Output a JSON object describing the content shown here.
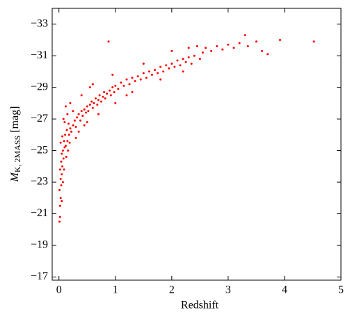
{
  "chart_data": {
    "type": "scatter",
    "x_label": "Redshift",
    "y_label": {
      "symbol": "M",
      "subscript": "K, 2MASS",
      "unit": "[mag]"
    },
    "color": "#ff0000",
    "xlim": [
      -0.12,
      5
    ],
    "xticks": [
      0,
      1,
      2,
      3,
      4,
      5
    ],
    "ylim": [
      -16.8,
      -34
    ],
    "yticks": [
      {
        "value": -33,
        "label": "−33"
      },
      {
        "value": -31,
        "label": "−31"
      },
      {
        "value": -29,
        "label": "−29"
      },
      {
        "value": -27,
        "label": "−27"
      },
      {
        "value": -25,
        "label": "−25"
      },
      {
        "value": -23,
        "label": "−23"
      },
      {
        "value": -21,
        "label": "−21"
      },
      {
        "value": -19,
        "label": "−19"
      },
      {
        "value": -17,
        "label": "−17"
      }
    ],
    "x": [
      0.01,
      0.02,
      0.02,
      0.03,
      0.01,
      0.04,
      0.03,
      0.05,
      0.02,
      0.06,
      0.04,
      0.08,
      0.05,
      0.07,
      0.1,
      0.03,
      0.09,
      0.12,
      0.06,
      0.15,
      0.11,
      0.14,
      0.18,
      0.2,
      0.1,
      0.17,
      0.22,
      0.25,
      0.28,
      0.3,
      0.15,
      0.32,
      0.35,
      0.38,
      0.4,
      0.42,
      0.45,
      0.48,
      0.5,
      0.52,
      0.55,
      0.58,
      0.6,
      0.62,
      0.65,
      0.68,
      0.7,
      0.72,
      0.75,
      0.78,
      0.8,
      0.82,
      0.85,
      0.88,
      0.9,
      0.92,
      0.95,
      0.98,
      1.0,
      1.05,
      1.1,
      1.15,
      1.2,
      1.25,
      1.3,
      1.35,
      1.4,
      1.45,
      1.5,
      1.55,
      1.6,
      1.65,
      1.7,
      1.75,
      1.8,
      1.85,
      1.9,
      1.95,
      2.0,
      2.05,
      2.1,
      2.15,
      2.2,
      2.25,
      2.3,
      2.35,
      2.4,
      2.5,
      2.55,
      2.6,
      2.7,
      2.8,
      2.9,
      3.0,
      3.1,
      3.2,
      3.3,
      3.35,
      3.5,
      3.6,
      3.7,
      3.92,
      4.52,
      0.3,
      0.25,
      0.4,
      0.5,
      0.6,
      0.7,
      0.2,
      0.12,
      0.08,
      1.0,
      1.2,
      1.5,
      1.3,
      0.95,
      2.0,
      2.2,
      1.8,
      2.45,
      2.3,
      0.55,
      0.45,
      0.35,
      0.07,
      0.05,
      0.09,
      0.13,
      0.16,
      0.19
    ],
    "y": [
      -20.5,
      -20.8,
      -21.5,
      -22.0,
      -22.5,
      -22.8,
      -23.2,
      -23.5,
      -23.8,
      -24.0,
      -24.3,
      -24.5,
      -24.8,
      -25.0,
      -25.2,
      -25.5,
      -25.6,
      -25.3,
      -25.9,
      -25.6,
      -26.0,
      -26.3,
      -26.0,
      -26.4,
      -26.8,
      -26.7,
      -26.2,
      -26.6,
      -26.9,
      -26.5,
      -27.3,
      -27.1,
      -27.3,
      -26.9,
      -27.5,
      -27.2,
      -27.6,
      -27.4,
      -27.8,
      -27.5,
      -27.9,
      -28.1,
      -27.7,
      -28.0,
      -28.3,
      -27.9,
      -28.2,
      -28.5,
      -28.1,
      -28.4,
      -28.7,
      -28.3,
      -28.6,
      -31.9,
      -28.8,
      -28.5,
      -29.0,
      -28.7,
      -29.1,
      -28.9,
      -29.3,
      -29.1,
      -29.5,
      -29.2,
      -29.6,
      -29.4,
      -29.7,
      -29.5,
      -29.9,
      -29.6,
      -30.0,
      -29.8,
      -30.1,
      -29.9,
      -30.3,
      -30.0,
      -30.4,
      -30.2,
      -30.5,
      -30.3,
      -30.7,
      -30.4,
      -30.8,
      -30.6,
      -30.9,
      -30.5,
      -31.0,
      -30.8,
      -31.2,
      -31.5,
      -31.3,
      -31.6,
      -31.4,
      -31.7,
      -31.5,
      -31.8,
      -32.3,
      -31.6,
      -31.9,
      -31.3,
      -31.1,
      -32.0,
      -31.9,
      -25.8,
      -27.5,
      -28.5,
      -26.8,
      -29.2,
      -27.3,
      -28.0,
      -27.8,
      -27.0,
      -28.0,
      -28.5,
      -30.5,
      -28.7,
      -29.8,
      -31.3,
      -30.0,
      -29.5,
      -31.6,
      -31.5,
      -29.0,
      -26.6,
      -26.2,
      -23.0,
      -21.8,
      -23.8,
      -24.6,
      -25.0,
      -25.5
    ]
  }
}
